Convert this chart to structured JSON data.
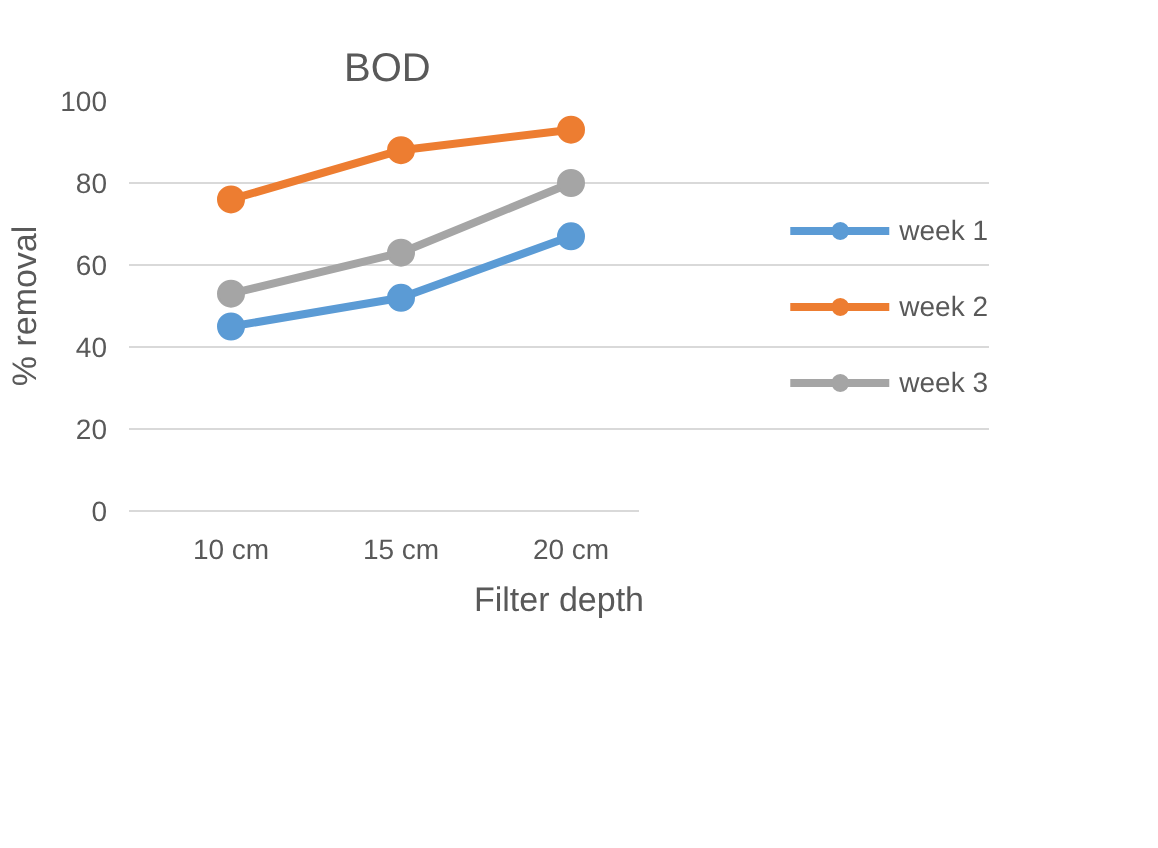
{
  "chart_data": {
    "type": "line",
    "title": "BOD",
    "xlabel": "Filter depth",
    "ylabel": "% removal",
    "categories": [
      "10 cm",
      "15 cm",
      "20 cm"
    ],
    "series": [
      {
        "name": "week 1",
        "color": "#5b9bd5",
        "values": [
          45,
          52,
          67
        ]
      },
      {
        "name": "week 2",
        "color": "#ed7d31",
        "values": [
          76,
          88,
          93
        ]
      },
      {
        "name": "week 3",
        "color": "#a5a5a5",
        "values": [
          53,
          63,
          80
        ]
      }
    ],
    "ylim": [
      0,
      100
    ],
    "yticks": [
      0,
      20,
      40,
      60,
      80,
      100
    ],
    "grid": "y",
    "legend": "right",
    "marker": "circle",
    "line_style": "solid"
  }
}
